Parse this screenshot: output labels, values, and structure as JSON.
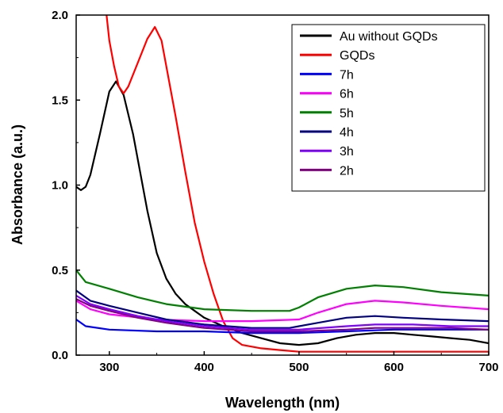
{
  "chart_data": {
    "type": "line",
    "xlabel": "Wavelength (nm)",
    "ylabel": "Absorbance (a.u.)",
    "xlim": [
      265,
      700
    ],
    "ylim": [
      0.0,
      2.0
    ],
    "x_ticks": [
      300,
      400,
      500,
      600,
      700
    ],
    "x_tick_labels": [
      "300",
      "400",
      "500",
      "600",
      "700"
    ],
    "y_ticks": [
      0.0,
      0.5,
      1.0,
      1.5,
      2.0
    ],
    "y_tick_labels": [
      "0.0",
      "0.5",
      "1.0",
      "1.5",
      "2.0"
    ],
    "grid": false,
    "legend_position": "top-right",
    "series": [
      {
        "name": "Au without GQDs",
        "color": "#000000",
        "x": [
          265,
          270,
          275,
          280,
          290,
          300,
          307,
          315,
          325,
          340,
          350,
          360,
          370,
          380,
          390,
          400,
          420,
          440,
          460,
          480,
          500,
          520,
          540,
          560,
          580,
          600,
          620,
          640,
          660,
          680,
          700
        ],
        "y": [
          0.99,
          0.97,
          0.99,
          1.06,
          1.3,
          1.55,
          1.61,
          1.53,
          1.3,
          0.85,
          0.6,
          0.45,
          0.36,
          0.3,
          0.26,
          0.22,
          0.17,
          0.13,
          0.1,
          0.07,
          0.06,
          0.07,
          0.1,
          0.12,
          0.13,
          0.13,
          0.12,
          0.11,
          0.1,
          0.09,
          0.07
        ]
      },
      {
        "name": "GQDs",
        "color": "#ff0000",
        "x": [
          297,
          300,
          305,
          310,
          315,
          320,
          330,
          340,
          348,
          355,
          360,
          370,
          380,
          390,
          400,
          410,
          420,
          430,
          440,
          460,
          480,
          500,
          550,
          600,
          650,
          700
        ],
        "y": [
          2.0,
          1.85,
          1.7,
          1.58,
          1.54,
          1.58,
          1.72,
          1.86,
          1.93,
          1.85,
          1.7,
          1.4,
          1.08,
          0.78,
          0.55,
          0.36,
          0.2,
          0.1,
          0.06,
          0.04,
          0.03,
          0.02,
          0.02,
          0.02,
          0.02,
          0.02
        ]
      },
      {
        "name": "7h",
        "color": "#0000ff",
        "x": [
          265,
          275,
          300,
          350,
          400,
          450,
          500,
          550,
          600,
          650,
          700
        ],
        "y": [
          0.21,
          0.17,
          0.15,
          0.14,
          0.14,
          0.13,
          0.13,
          0.14,
          0.15,
          0.15,
          0.15
        ]
      },
      {
        "name": "6h",
        "color": "#ff00ff",
        "x": [
          265,
          280,
          300,
          350,
          400,
          450,
          500,
          520,
          550,
          580,
          610,
          650,
          700
        ],
        "y": [
          0.32,
          0.27,
          0.24,
          0.21,
          0.2,
          0.2,
          0.21,
          0.25,
          0.3,
          0.32,
          0.31,
          0.29,
          0.27
        ]
      },
      {
        "name": "5h",
        "color": "#008000",
        "x": [
          265,
          275,
          300,
          330,
          360,
          400,
          450,
          490,
          500,
          520,
          550,
          580,
          610,
          650,
          700
        ],
        "y": [
          0.5,
          0.43,
          0.39,
          0.34,
          0.3,
          0.27,
          0.26,
          0.26,
          0.28,
          0.34,
          0.39,
          0.41,
          0.4,
          0.37,
          0.35
        ]
      },
      {
        "name": "4h",
        "color": "#000080",
        "x": [
          265,
          280,
          300,
          330,
          360,
          400,
          450,
          490,
          500,
          520,
          550,
          580,
          610,
          650,
          700
        ],
        "y": [
          0.38,
          0.32,
          0.29,
          0.25,
          0.21,
          0.18,
          0.16,
          0.16,
          0.17,
          0.19,
          0.22,
          0.23,
          0.22,
          0.21,
          0.2
        ]
      },
      {
        "name": "3h",
        "color": "#8000ff",
        "x": [
          265,
          280,
          300,
          330,
          360,
          400,
          450,
          500,
          550,
          580,
          620,
          660,
          700
        ],
        "y": [
          0.35,
          0.3,
          0.27,
          0.23,
          0.2,
          0.17,
          0.15,
          0.15,
          0.17,
          0.18,
          0.18,
          0.17,
          0.17
        ]
      },
      {
        "name": "2h",
        "color": "#800080",
        "x": [
          265,
          280,
          300,
          330,
          360,
          400,
          450,
          500,
          550,
          580,
          620,
          660,
          700
        ],
        "y": [
          0.33,
          0.29,
          0.26,
          0.22,
          0.19,
          0.16,
          0.14,
          0.14,
          0.15,
          0.16,
          0.16,
          0.16,
          0.15
        ]
      }
    ]
  }
}
